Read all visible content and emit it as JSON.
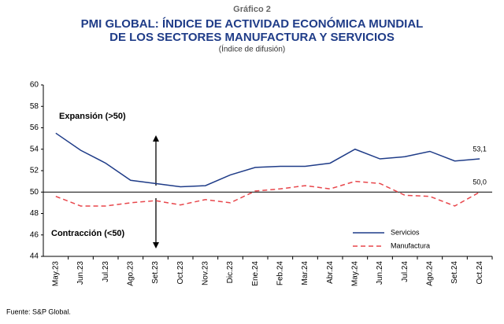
{
  "chart_data": {
    "type": "line",
    "header": "Gráfico 2",
    "title": [
      "PMI GLOBAL: ÍNDICE DE ACTIVIDAD ECONÓMICA MUNDIAL",
      "DE LOS SECTORES MANUFACTURA Y SERVICIOS"
    ],
    "subtitle": "(Índice de difusión)",
    "categories": [
      "May.23",
      "Jun.23",
      "Jul.23",
      "Ago.23",
      "Set.23",
      "Oct.23",
      "Nov.23",
      "Dic.23",
      "Ene.24",
      "Feb.24",
      "Mar.24",
      "Abr.24",
      "May.24",
      "Jun.24",
      "Jul.24",
      "Ago.24",
      "Set.24",
      "Oct.24"
    ],
    "series": [
      {
        "name": "Servicios",
        "color": "#1f3c88",
        "dash": false,
        "values": [
          55.5,
          53.9,
          52.7,
          51.1,
          50.8,
          50.5,
          50.6,
          51.6,
          52.3,
          52.4,
          52.4,
          52.7,
          54.0,
          53.1,
          53.3,
          53.8,
          52.9,
          53.1
        ],
        "value_labels": [
          null,
          null,
          null,
          null,
          null,
          null,
          null,
          null,
          null,
          null,
          null,
          null,
          null,
          null,
          null,
          null,
          null,
          "53,1"
        ]
      },
      {
        "name": "Manufactura",
        "color": "#e8474c",
        "dash": true,
        "values": [
          49.6,
          48.7,
          48.7,
          49.0,
          49.2,
          48.8,
          49.3,
          49.0,
          50.1,
          50.3,
          50.6,
          50.3,
          51.0,
          50.8,
          49.7,
          49.6,
          48.7,
          50.0
        ],
        "value_labels": [
          null,
          null,
          null,
          null,
          null,
          null,
          null,
          null,
          null,
          null,
          null,
          null,
          null,
          null,
          null,
          null,
          null,
          "50,0"
        ]
      }
    ],
    "reference_line": 50,
    "annotations": [
      "Expansión (>50)",
      "Contracción (<50)"
    ],
    "ylim": [
      44,
      60
    ],
    "yticks": [
      44,
      46,
      48,
      50,
      52,
      54,
      56,
      58,
      60
    ],
    "legend": "lower right",
    "source": "Fuente: S&P Global."
  }
}
